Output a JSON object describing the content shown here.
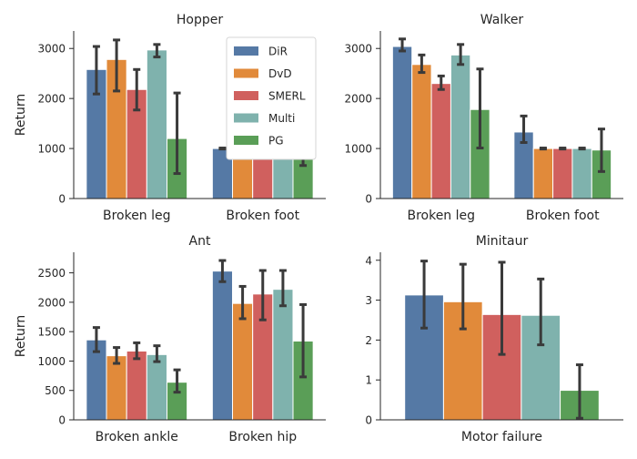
{
  "colors": {
    "DiR": "#5579a5",
    "DvD": "#e18a3a",
    "SMERL": "#d0605e",
    "Multi": "#7fb2ad",
    "PG": "#5a9e57",
    "errorbar": "#3a3a3a",
    "axis": "#262626"
  },
  "chart_data": [
    {
      "type": "bar",
      "title": "Hopper",
      "ylabel": "Return",
      "ylim": [
        0,
        3350
      ],
      "yticks": [
        0,
        1000,
        2000,
        3000
      ],
      "categories": [
        "Broken leg",
        "Broken foot"
      ],
      "legend": {
        "placement": "top-right",
        "entries": [
          "DiR",
          "DvD",
          "SMERL",
          "Multi",
          "PG"
        ]
      },
      "series": [
        {
          "name": "DiR",
          "values": [
            2580,
            1000
          ],
          "err_low": [
            2090,
            990
          ],
          "err_high": [
            3040,
            1010
          ]
        },
        {
          "name": "DvD",
          "values": [
            2780,
            1000
          ],
          "err_low": [
            2150,
            990
          ],
          "err_high": [
            3170,
            1010
          ]
        },
        {
          "name": "SMERL",
          "values": [
            2180,
            1000
          ],
          "err_low": [
            1770,
            990
          ],
          "err_high": [
            2580,
            1010
          ]
        },
        {
          "name": "Multi",
          "values": [
            2970,
            1000
          ],
          "err_low": [
            2830,
            990
          ],
          "err_high": [
            3080,
            1010
          ]
        },
        {
          "name": "PG",
          "values": [
            1200,
            870
          ],
          "err_low": [
            500,
            660
          ],
          "err_high": [
            2110,
            1010
          ]
        }
      ]
    },
    {
      "type": "bar",
      "title": "Walker",
      "ylabel": "",
      "ylim": [
        0,
        3350
      ],
      "yticks": [
        0,
        1000,
        2000,
        3000
      ],
      "categories": [
        "Broken leg",
        "Broken foot"
      ],
      "series": [
        {
          "name": "DiR",
          "values": [
            3040,
            1330
          ],
          "err_low": [
            2950,
            1120
          ],
          "err_high": [
            3190,
            1650
          ]
        },
        {
          "name": "DvD",
          "values": [
            2680,
            1000
          ],
          "err_low": [
            2520,
            990
          ],
          "err_high": [
            2870,
            1010
          ]
        },
        {
          "name": "SMERL",
          "values": [
            2300,
            1000
          ],
          "err_low": [
            2180,
            990
          ],
          "err_high": [
            2450,
            1010
          ]
        },
        {
          "name": "Multi",
          "values": [
            2870,
            1000
          ],
          "err_low": [
            2680,
            990
          ],
          "err_high": [
            3080,
            1010
          ]
        },
        {
          "name": "PG",
          "values": [
            1780,
            970
          ],
          "err_low": [
            1010,
            540
          ],
          "err_high": [
            2590,
            1390
          ]
        }
      ]
    },
    {
      "type": "bar",
      "title": "Ant",
      "ylabel": "Return",
      "ylim": [
        0,
        2850
      ],
      "yticks": [
        0,
        500,
        1000,
        1500,
        2000,
        2500
      ],
      "categories": [
        "Broken ankle",
        "Broken hip"
      ],
      "series": [
        {
          "name": "DiR",
          "values": [
            1360,
            2530
          ],
          "err_low": [
            1160,
            2350
          ],
          "err_high": [
            1570,
            2710
          ]
        },
        {
          "name": "DvD",
          "values": [
            1090,
            1980
          ],
          "err_low": [
            960,
            1720
          ],
          "err_high": [
            1230,
            2270
          ]
        },
        {
          "name": "SMERL",
          "values": [
            1170,
            2140
          ],
          "err_low": [
            1040,
            1700
          ],
          "err_high": [
            1310,
            2540
          ]
        },
        {
          "name": "Multi",
          "values": [
            1110,
            2220
          ],
          "err_low": [
            990,
            1940
          ],
          "err_high": [
            1260,
            2540
          ]
        },
        {
          "name": "PG",
          "values": [
            640,
            1340
          ],
          "err_low": [
            470,
            730
          ],
          "err_high": [
            850,
            1960
          ]
        }
      ]
    },
    {
      "type": "bar",
      "title": "Minitaur",
      "ylabel": "",
      "ylim": [
        0,
        4.2
      ],
      "yticks": [
        0,
        1,
        2,
        3,
        4
      ],
      "categories": [
        "Motor failure"
      ],
      "series": [
        {
          "name": "DiR",
          "values": [
            3.13
          ],
          "err_low": [
            2.3
          ],
          "err_high": [
            3.98
          ]
        },
        {
          "name": "DvD",
          "values": [
            2.96
          ],
          "err_low": [
            2.28
          ],
          "err_high": [
            3.9
          ]
        },
        {
          "name": "SMERL",
          "values": [
            2.64
          ],
          "err_low": [
            1.64
          ],
          "err_high": [
            3.95
          ]
        },
        {
          "name": "Multi",
          "values": [
            2.62
          ],
          "err_low": [
            1.88
          ],
          "err_high": [
            3.53
          ]
        },
        {
          "name": "PG",
          "values": [
            0.74
          ],
          "err_low": [
            0.04
          ],
          "err_high": [
            1.38
          ]
        }
      ]
    }
  ]
}
